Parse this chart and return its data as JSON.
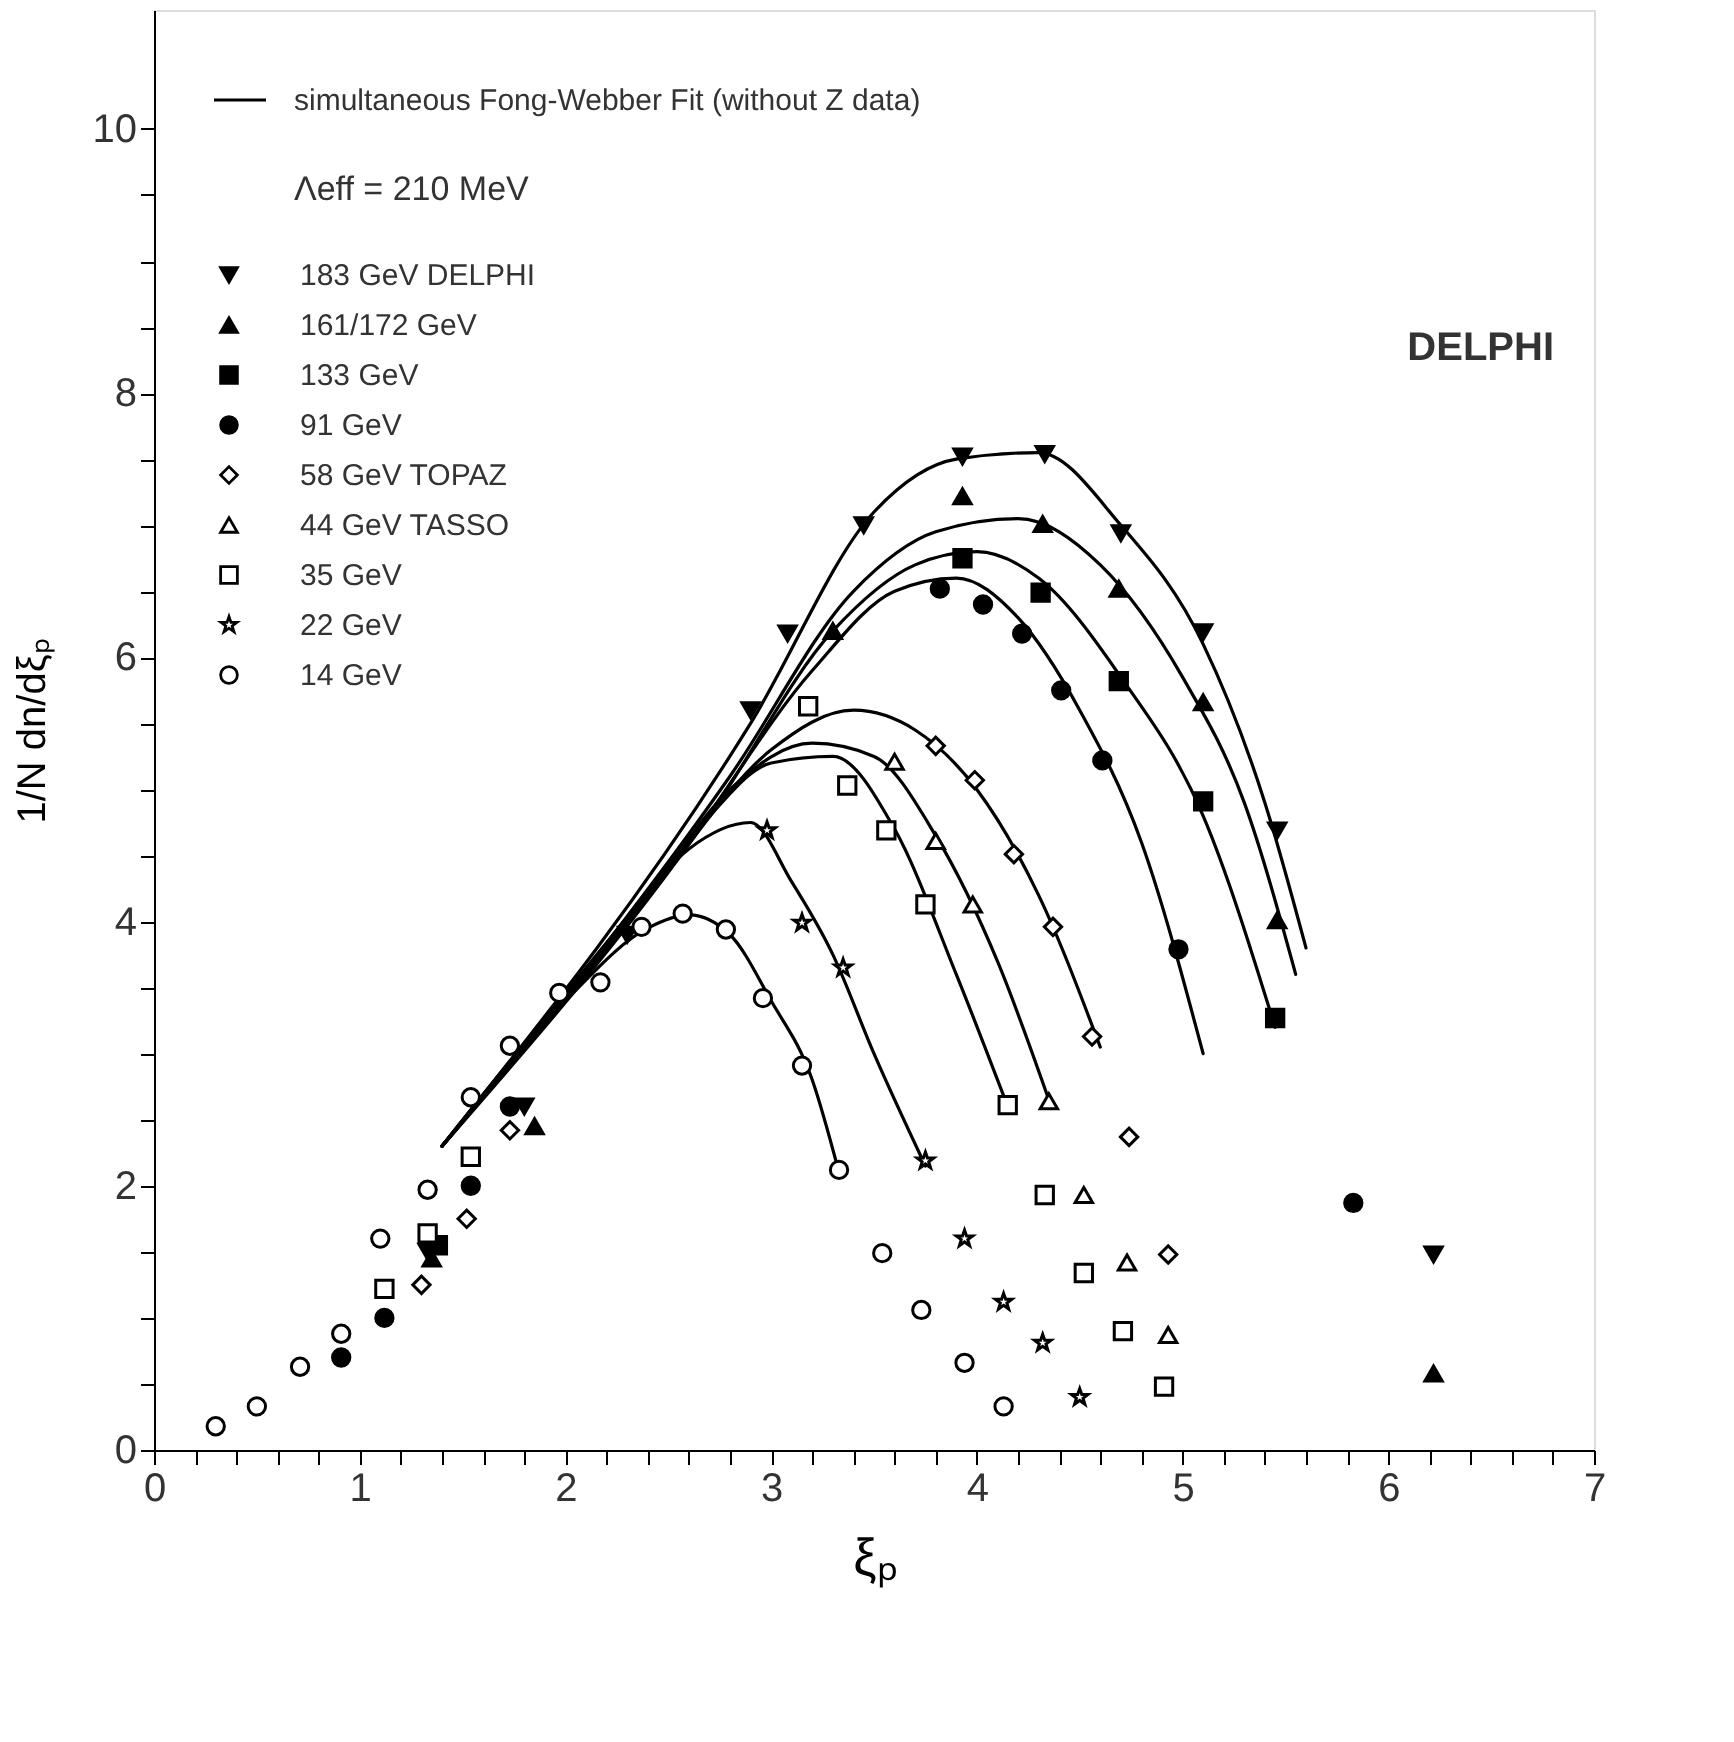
{
  "chart_data": {
    "type": "scatter",
    "xlabel": "ξₚ",
    "ylabel": "1/N dn/dξₚ",
    "xlim": [
      0,
      7
    ],
    "ylim": [
      0,
      10.9
    ],
    "xticks": [
      0,
      {
        "value": 0.2,
        "label": null
      },
      {
        "value": 0.4,
        "label": null
      },
      {
        "value": 0.6,
        "label": null
      },
      {
        "value": 0.8,
        "label": null
      },
      1,
      {
        "value": 1.2,
        "label": null
      },
      {
        "value": 1.4,
        "label": null
      },
      {
        "value": 1.6,
        "label": null
      },
      {
        "value": 1.8,
        "label": null
      },
      2,
      {
        "value": 2.2,
        "label": null
      },
      {
        "value": 2.4,
        "label": null
      },
      {
        "value": 2.6,
        "label": null
      },
      {
        "value": 2.8,
        "label": null
      },
      3,
      {
        "value": 3.2,
        "label": null
      },
      {
        "value": 3.4,
        "label": null
      },
      {
        "value": 3.6,
        "label": null
      },
      {
        "value": 3.8,
        "label": null
      },
      4,
      {
        "value": 4.2,
        "label": null
      },
      {
        "value": 4.4,
        "label": null
      },
      {
        "value": 4.6,
        "label": null
      },
      {
        "value": 4.8,
        "label": null
      },
      5,
      {
        "value": 5.2,
        "label": null
      },
      {
        "value": 5.4,
        "label": null
      },
      {
        "value": 5.6,
        "label": null
      },
      {
        "value": 5.8,
        "label": null
      },
      6,
      {
        "value": 6.2,
        "label": null
      },
      {
        "value": 6.4,
        "label": null
      },
      {
        "value": 6.6,
        "label": null
      },
      {
        "value": 6.8,
        "label": null
      },
      7
    ],
    "yticks": [
      0,
      {
        "value": 0.5,
        "label": null
      },
      {
        "value": 1,
        "label": null
      },
      {
        "value": 1.5,
        "label": null
      },
      2,
      {
        "value": 2.5,
        "label": null
      },
      {
        "value": 3,
        "label": null
      },
      {
        "value": 3.5,
        "label": null
      },
      4,
      {
        "value": 4.5,
        "label": null
      },
      {
        "value": 5,
        "label": null
      },
      {
        "value": 5.5,
        "label": null
      },
      6,
      {
        "value": 6.5,
        "label": null
      },
      {
        "value": 7,
        "label": null
      },
      {
        "value": 7.5,
        "label": null
      },
      8,
      {
        "value": 8.5,
        "label": null
      },
      {
        "value": 9,
        "label": null
      },
      {
        "value": 9.5,
        "label": null
      },
      10
    ],
    "grid": false,
    "legend": "top left",
    "annotations": [
      "Λeff = 210 MeV",
      "DELPHI"
    ],
    "series": [
      {
        "name": "simultaneous Fong-Webber Fit (without Z data)",
        "type": "line",
        "line_style": "solid",
        "color": "#000000",
        "x": [
          1.4,
          2.0,
          2.4,
          2.6,
          2.8,
          3.0,
          3.2,
          3.33
        ],
        "values": [
          2.3,
          3.4,
          3.95,
          4.05,
          3.9,
          3.4,
          2.8,
          2.1
        ]
      },
      {
        "name": "183 GeV DELPHI",
        "marker": "triangle-down",
        "color": "#000000",
        "x": [
          1.33,
          1.8,
          2.3,
          2.9,
          3.08,
          3.45,
          3.93,
          4.33,
          4.7,
          5.1,
          5.46,
          6.22
        ],
        "values": [
          1.5,
          2.6,
          3.9,
          5.6,
          6.18,
          7.0,
          7.52,
          7.54,
          6.94,
          6.19,
          4.69,
          1.48
        ]
      },
      {
        "name": "161/172 GeV",
        "marker": "triangle",
        "color": "#000000",
        "x": [
          1.35,
          1.85,
          3.3,
          3.93,
          4.32,
          4.69,
          5.1,
          5.46,
          6.22
        ],
        "values": [
          1.45,
          2.45,
          6.2,
          7.22,
          7.01,
          6.52,
          5.66,
          4.01,
          0.58
        ]
      },
      {
        "name": "133 GeV",
        "marker": "square",
        "color": "#000000",
        "x": [
          1.38,
          3.93,
          4.31,
          4.69,
          5.1,
          5.45
        ],
        "values": [
          1.55,
          6.75,
          6.49,
          5.82,
          4.91,
          3.27
        ]
      },
      {
        "name": "91 GeV",
        "marker": "circle",
        "color": "#000000",
        "x": [
          0.91,
          1.12,
          1.54,
          1.73,
          3.82,
          4.03,
          4.22,
          4.41,
          4.61,
          4.98,
          5.83
        ],
        "values": [
          0.7,
          1.0,
          2.0,
          2.6,
          6.52,
          6.4,
          6.18,
          5.75,
          5.22,
          3.79,
          1.87
        ]
      },
      {
        "name": "58 GeV  TOPAZ",
        "marker": "diamond-open",
        "color": "#000000",
        "x": [
          1.3,
          1.52,
          1.73,
          3.8,
          3.99,
          4.18,
          4.37,
          4.56,
          4.74,
          4.93
        ],
        "values": [
          1.25,
          1.75,
          2.42,
          5.33,
          5.07,
          4.51,
          3.96,
          3.13,
          2.37,
          1.48
        ]
      },
      {
        "name": "44 GeV  TASSO",
        "marker": "triangle-open",
        "color": "#000000",
        "x": [
          3.6,
          3.8,
          3.98,
          4.35,
          4.52,
          4.73,
          4.93
        ],
        "values": [
          5.21,
          4.61,
          4.13,
          2.64,
          1.93,
          1.42,
          0.87
        ]
      },
      {
        "name": "35 GeV",
        "marker": "square-open",
        "color": "#000000",
        "x": [
          1.12,
          1.33,
          1.54,
          3.18,
          3.37,
          3.56,
          3.75,
          4.15,
          4.33,
          4.52,
          4.71,
          4.91
        ],
        "values": [
          1.22,
          1.64,
          2.22,
          5.63,
          5.03,
          4.69,
          4.13,
          2.61,
          1.93,
          1.34,
          0.9,
          0.48
        ]
      },
      {
        "name": "22 GeV",
        "marker": "star-open",
        "color": "#000000",
        "x": [
          2.98,
          3.15,
          3.35,
          3.75,
          3.94,
          4.13,
          4.32,
          4.5
        ],
        "values": [
          4.69,
          3.99,
          3.65,
          2.19,
          1.6,
          1.12,
          0.81,
          0.4
        ]
      },
      {
        "name": "14 GeV",
        "marker": "circle-open",
        "color": "#000000",
        "x": [
          0.3,
          0.5,
          0.71,
          0.91,
          1.1,
          1.33,
          1.54,
          1.73,
          1.97,
          2.17,
          2.37,
          2.57,
          2.78,
          2.96,
          3.15,
          3.33,
          3.54,
          3.73,
          3.94,
          4.13
        ],
        "values": [
          0.18,
          0.33,
          0.63,
          0.88,
          1.6,
          1.97,
          2.67,
          3.06,
          3.46,
          3.54,
          3.96,
          4.06,
          3.94,
          3.42,
          2.91,
          2.12,
          1.49,
          1.06,
          0.66,
          0.33
        ]
      },
      {
        "type": "line",
        "line_style": "solid",
        "color": "#000000",
        "x": [
          1.4,
          2.2,
          2.6,
          2.9,
          3.1,
          3.3,
          3.5,
          3.75
        ],
        "values": [
          2.3,
          3.8,
          4.55,
          4.75,
          4.3,
          3.75,
          3.0,
          2.15
        ]
      },
      {
        "type": "line",
        "line_style": "solid",
        "color": "#000000",
        "x": [
          1.4,
          2.3,
          2.7,
          3.0,
          3.3,
          3.6,
          3.9,
          4.15
        ],
        "values": [
          2.3,
          4.0,
          4.8,
          5.2,
          5.25,
          4.7,
          3.6,
          2.6
        ]
      },
      {
        "type": "line",
        "line_style": "solid",
        "color": "#000000",
        "x": [
          1.4,
          2.4,
          2.8,
          3.2,
          3.5,
          3.8,
          4.1,
          4.35
        ],
        "values": [
          2.3,
          4.2,
          5.0,
          5.35,
          5.25,
          4.65,
          3.7,
          2.65
        ]
      },
      {
        "type": "line",
        "line_style": "solid",
        "color": "#000000",
        "x": [
          1.4,
          2.5,
          3.0,
          3.4,
          3.7,
          4.0,
          4.3,
          4.6
        ],
        "values": [
          2.3,
          4.4,
          5.3,
          5.6,
          5.45,
          5.0,
          4.2,
          3.05
        ]
      },
      {
        "type": "line",
        "line_style": "solid",
        "color": "#000000",
        "x": [
          1.4,
          2.6,
          3.2,
          3.6,
          3.9,
          4.2,
          4.5,
          4.8,
          5.1
        ],
        "values": [
          2.3,
          4.6,
          5.9,
          6.5,
          6.6,
          6.3,
          5.6,
          4.6,
          3.0
        ]
      },
      {
        "type": "line",
        "line_style": "solid",
        "color": "#000000",
        "x": [
          1.4,
          2.7,
          3.3,
          3.7,
          4.0,
          4.3,
          4.7,
          5.1,
          5.45
        ],
        "values": [
          2.3,
          4.8,
          6.2,
          6.7,
          6.8,
          6.6,
          5.85,
          4.8,
          3.2
        ]
      },
      {
        "type": "line",
        "line_style": "solid",
        "color": "#000000",
        "x": [
          1.4,
          2.8,
          3.4,
          3.8,
          4.2,
          4.6,
          5.0,
          5.3,
          5.55
        ],
        "values": [
          2.3,
          5.1,
          6.5,
          6.95,
          7.05,
          6.7,
          5.85,
          4.9,
          3.6
        ]
      },
      {
        "type": "line",
        "line_style": "solid",
        "color": "#000000",
        "x": [
          1.4,
          2.9,
          3.5,
          3.9,
          4.3,
          4.7,
          5.1,
          5.4,
          5.6
        ],
        "values": [
          2.3,
          5.5,
          7.1,
          7.5,
          7.55,
          7.0,
          6.1,
          4.9,
          3.8
        ]
      }
    ]
  }
}
